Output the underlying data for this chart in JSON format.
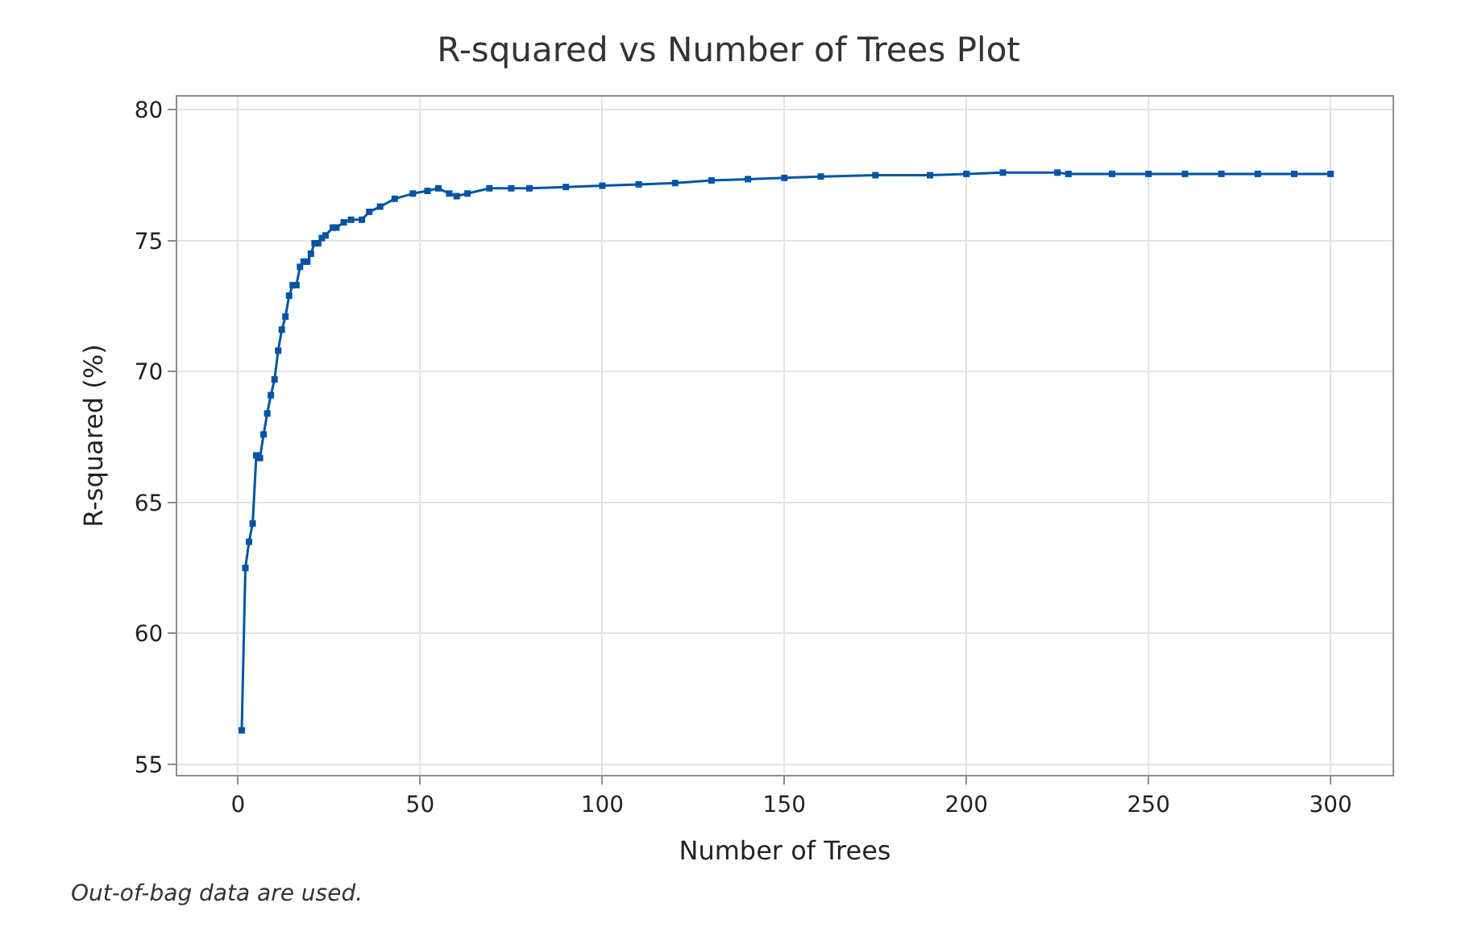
{
  "chart_data": {
    "type": "line",
    "title": "R-squared vs Number of Trees Plot",
    "xlabel": "Number of Trees",
    "ylabel": "R-squared (%)",
    "annotations": [
      "Out-of-bag data are used."
    ],
    "x": [
      1,
      2,
      3,
      4,
      5,
      6,
      7,
      8,
      9,
      10,
      11,
      12,
      13,
      14,
      15,
      16,
      17,
      18,
      19,
      20,
      21,
      22,
      23,
      24,
      26,
      27,
      29,
      31,
      34,
      36,
      39,
      43,
      48,
      52,
      55,
      58,
      60,
      63,
      69,
      75,
      80,
      90,
      100,
      110,
      120,
      130,
      140,
      150,
      160,
      175,
      190,
      200,
      210,
      225,
      228,
      240,
      250,
      260,
      270,
      280,
      290,
      300
    ],
    "series": [
      {
        "color": "#0054a6",
        "values": [
          56.3,
          62.5,
          63.5,
          64.2,
          66.8,
          66.7,
          67.6,
          68.4,
          69.1,
          69.7,
          70.8,
          71.6,
          72.1,
          72.9,
          73.3,
          73.3,
          74.0,
          74.2,
          74.2,
          74.5,
          74.9,
          74.9,
          75.1,
          75.2,
          75.5,
          75.5,
          75.7,
          75.8,
          75.8,
          76.1,
          76.3,
          76.6,
          76.8,
          76.9,
          77.0,
          76.8,
          76.7,
          76.8,
          77.0,
          77.0,
          77.0,
          77.05,
          77.1,
          77.15,
          77.2,
          77.3,
          77.35,
          77.4,
          77.45,
          77.5,
          77.5,
          77.55,
          77.6,
          77.6,
          77.55,
          77.55,
          77.55,
          77.55,
          77.55,
          77.55,
          77.55,
          77.55
        ]
      }
    ],
    "xlim": [
      -16.7,
      317
    ],
    "ylim": [
      54.6,
      80.5
    ],
    "xticks": [
      0,
      50,
      100,
      150,
      200,
      250,
      300
    ],
    "yticks": [
      55,
      60,
      65,
      70,
      75,
      80
    ],
    "grid": true,
    "marker": "square",
    "line_style": "solid"
  }
}
